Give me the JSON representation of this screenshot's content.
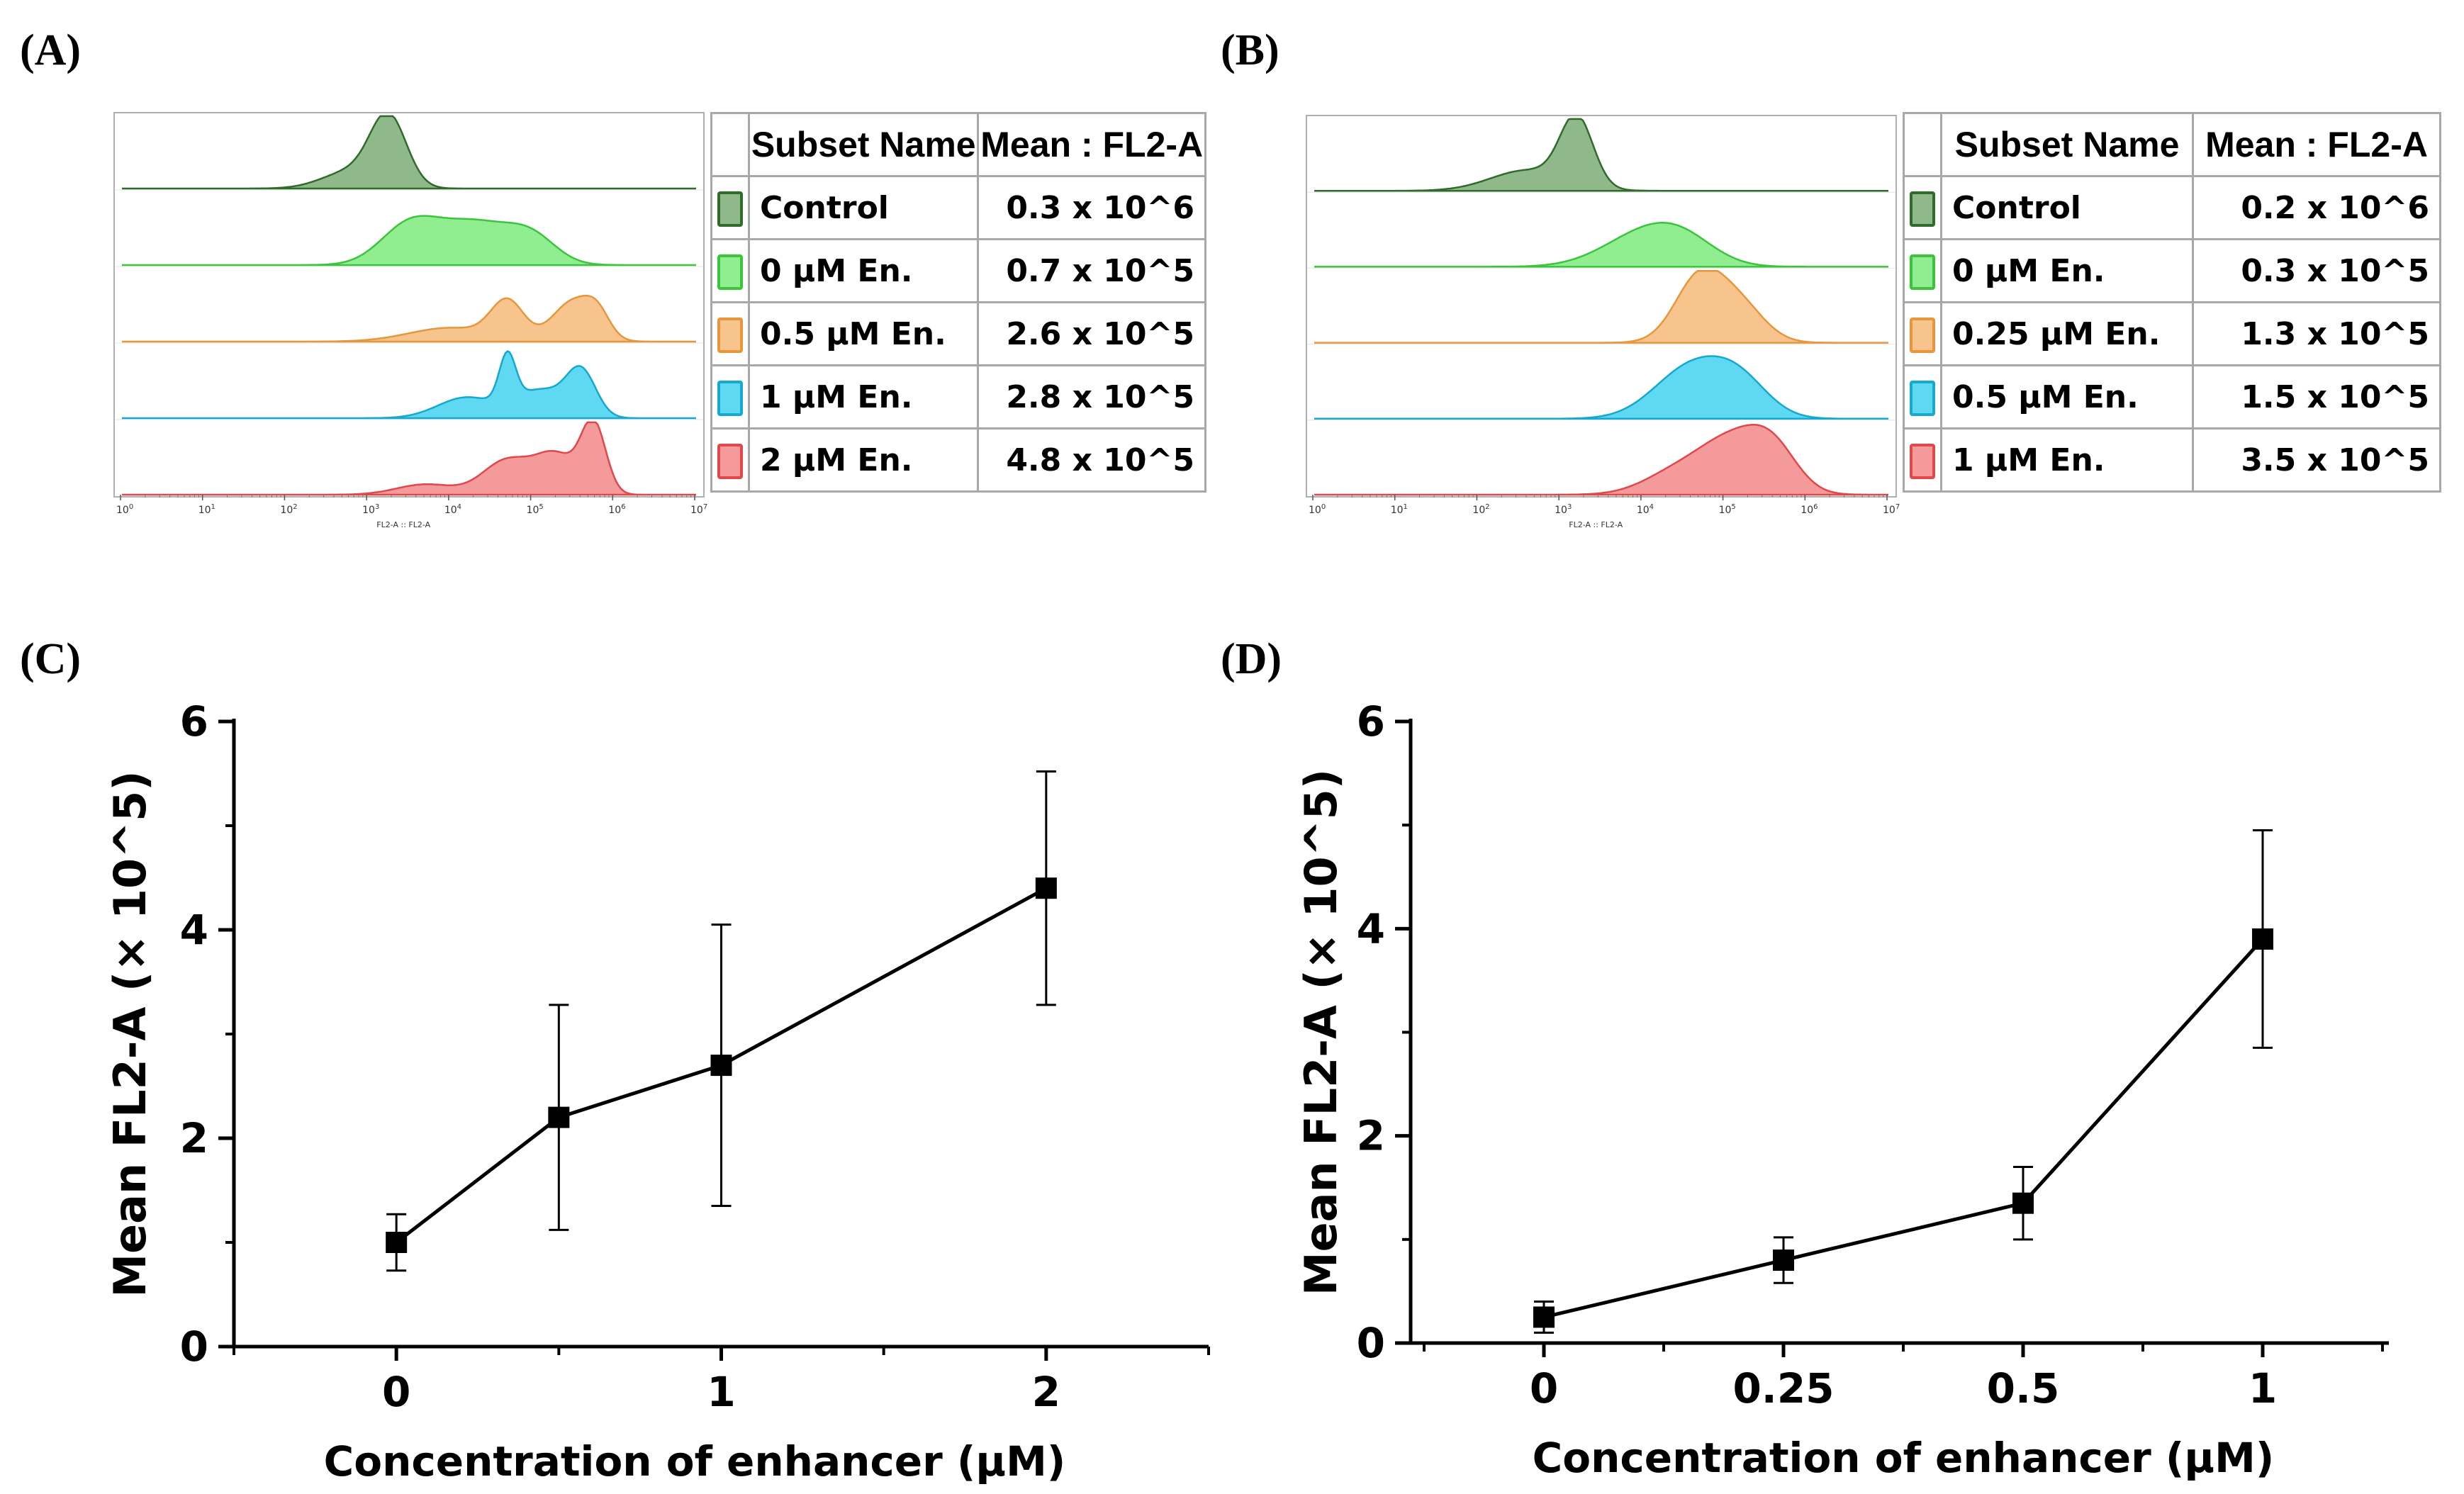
{
  "panels": {
    "A": {
      "label": "(A)"
    },
    "B": {
      "label": "(B)"
    },
    "C": {
      "label": "(C)"
    },
    "D": {
      "label": "(D)"
    }
  },
  "chart_data": [
    {
      "type": "area",
      "panel": "A",
      "x_scale": "log",
      "xlim": [
        1,
        10000000
      ],
      "x_ticks": [
        "10^0",
        "10^1",
        "10^2",
        "10^3",
        "10^4",
        "10^5",
        "10^6",
        "10^7"
      ],
      "xlabel": "FL2-A :: FL2-A",
      "table": {
        "headers": [
          "Subset Name",
          "Mean : FL2-A"
        ],
        "rows": [
          {
            "name": "Control",
            "mean": "0.3 x 10^6",
            "fill": "#8fb98a",
            "stroke": "#2f6b2a"
          },
          {
            "name": "0 μM En.",
            "mean": "0.7 x 10^5",
            "fill": "#90ee90",
            "stroke": "#3cc43c"
          },
          {
            "name": "0.5 μM En.",
            "mean": "2.6 x 10^5",
            "fill": "#f6c48c",
            "stroke": "#e8963c"
          },
          {
            "name": "1 μM En.",
            "mean": "2.8 x 10^5",
            "fill": "#5fd8f2",
            "stroke": "#16a8cf"
          },
          {
            "name": "2 μM En.",
            "mean": "4.8 x 10^5",
            "fill": "#f59a9a",
            "stroke": "#e0484c"
          }
        ]
      }
    },
    {
      "type": "area",
      "panel": "B",
      "x_scale": "log",
      "xlim": [
        1,
        10000000
      ],
      "x_ticks": [
        "10^0",
        "10^1",
        "10^2",
        "10^3",
        "10^4",
        "10^5",
        "10^6",
        "10^7"
      ],
      "xlabel": "FL2-A :: FL2-A",
      "table": {
        "headers": [
          "Subset Name",
          "Mean : FL2-A"
        ],
        "rows": [
          {
            "name": "Control",
            "mean": "0.2 x 10^6",
            "fill": "#8fb98a",
            "stroke": "#2f6b2a"
          },
          {
            "name": "0 μM En.",
            "mean": "0.3 x 10^5",
            "fill": "#90ee90",
            "stroke": "#3cc43c"
          },
          {
            "name": "0.25 μM En.",
            "mean": "1.3 x 10^5",
            "fill": "#f6c48c",
            "stroke": "#e8963c"
          },
          {
            "name": "0.5 μM En.",
            "mean": "1.5 x 10^5",
            "fill": "#5fd8f2",
            "stroke": "#16a8cf"
          },
          {
            "name": "1 μM En.",
            "mean": "3.5 x 10^5",
            "fill": "#f59a9a",
            "stroke": "#e0484c"
          }
        ]
      }
    },
    {
      "type": "line",
      "panel": "C",
      "x": [
        0,
        0.5,
        1,
        2
      ],
      "y": [
        1.0,
        2.2,
        2.7,
        4.4
      ],
      "yerr": [
        0.27,
        1.08,
        1.35,
        1.12
      ],
      "xlim": [
        -0.5,
        2.5
      ],
      "ylim": [
        0,
        6
      ],
      "x_ticks": [
        "0",
        "1",
        "2"
      ],
      "x_tick_values": [
        0,
        1,
        2
      ],
      "y_ticks": [
        "0",
        "2",
        "4",
        "6"
      ],
      "y_tick_values": [
        0,
        2,
        4,
        6
      ],
      "xlabel": "Concentration of enhancer (μM)",
      "ylabel": "Mean FL2-A (× 10^5)"
    },
    {
      "type": "line",
      "panel": "D",
      "x": [
        "0",
        "0.25",
        "0.5",
        "1"
      ],
      "y": [
        0.25,
        0.8,
        1.35,
        3.9
      ],
      "yerr": [
        0.15,
        0.22,
        0.35,
        1.05
      ],
      "ylim": [
        0,
        6
      ],
      "x_ticks": [
        "0",
        "0.25",
        "0.5",
        "1"
      ],
      "y_ticks": [
        "0",
        "2",
        "4",
        "6"
      ],
      "y_tick_values": [
        0,
        2,
        4,
        6
      ],
      "xlabel": "Concentration of enhancer (μM)",
      "ylabel": "Mean FL2-A (× 10^5)"
    }
  ]
}
